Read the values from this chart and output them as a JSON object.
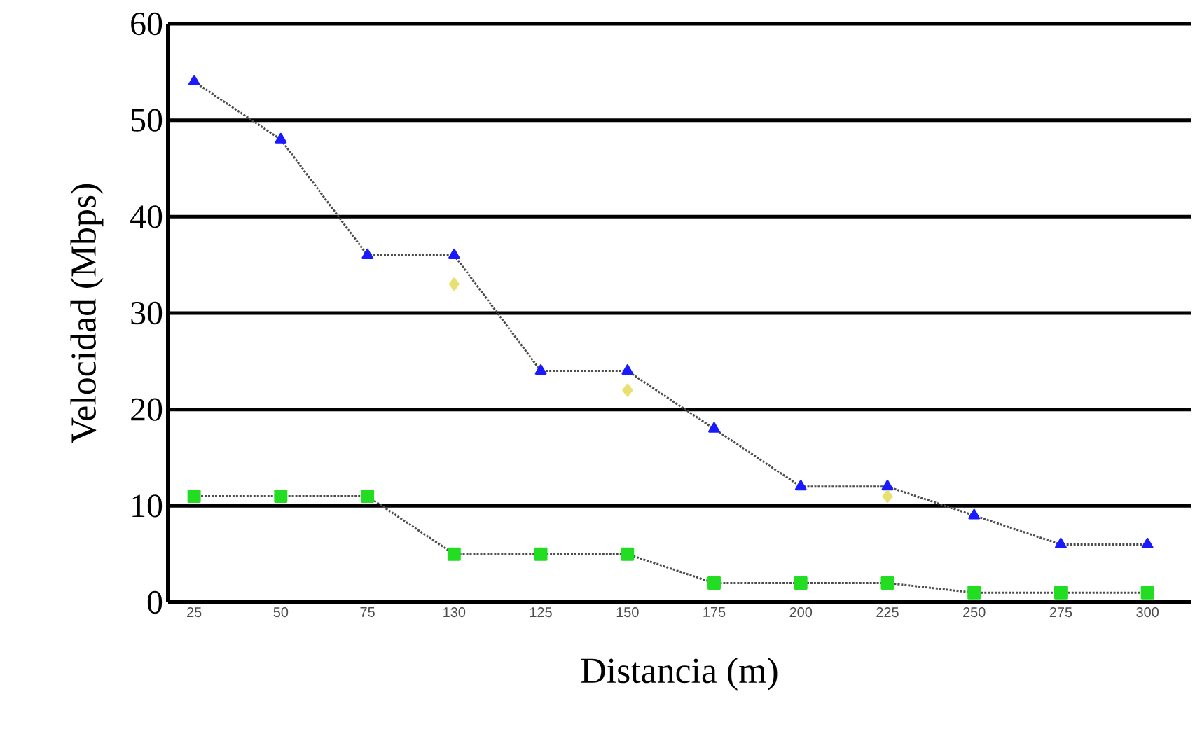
{
  "chart_data": {
    "type": "line",
    "xlabel": "Distancia (m)",
    "ylabel": "Velocidad (Mbps)",
    "categories": [
      "25",
      "50",
      "75",
      "130",
      "125",
      "150",
      "175",
      "200",
      "225",
      "250",
      "275",
      "300"
    ],
    "series": [
      {
        "color": "#1a1aff",
        "marker": "triangle",
        "values": [
          54,
          48,
          36,
          36,
          24,
          24,
          18,
          12,
          12,
          9,
          6,
          6
        ]
      },
      {
        "color": "#e8e070",
        "type": "scatter",
        "marker": "diamond",
        "values": [
          null,
          null,
          null,
          33,
          null,
          22,
          null,
          null,
          11,
          null,
          null,
          null
        ]
      },
      {
        "color": "#22dd22",
        "marker": "square",
        "values": [
          11,
          11,
          11,
          5,
          5,
          5,
          2,
          2,
          2,
          1,
          1,
          1
        ]
      }
    ],
    "ylim": [
      0,
      60
    ],
    "yticks": [
      0,
      10,
      20,
      30,
      40,
      50,
      60
    ],
    "grid": "y",
    "line_style": "dotted"
  }
}
